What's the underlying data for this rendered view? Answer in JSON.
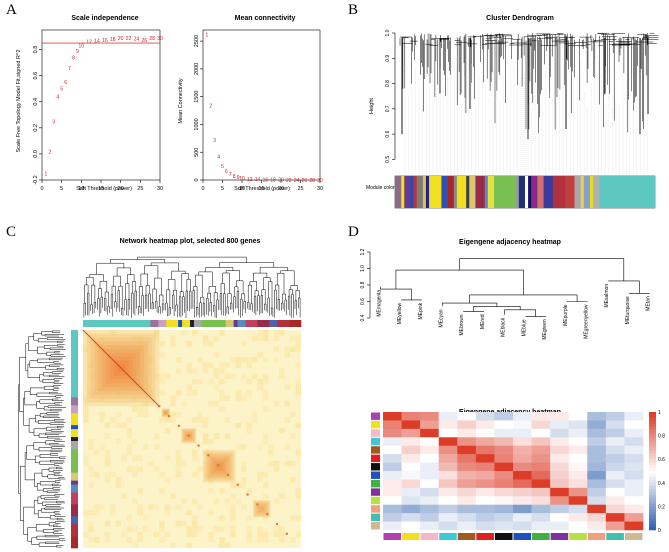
{
  "panels": {
    "a": {
      "letter": "A"
    },
    "b": {
      "letter": "B"
    },
    "c": {
      "letter": "C"
    },
    "d": {
      "letter": "D"
    }
  },
  "chart_data": [
    {
      "id": "scale-independence",
      "type": "scatter",
      "title": "Scale independence",
      "xlabel": "Soft Threshold (power)",
      "ylabel": "Scale Free Topology Model Fit,signed R^2",
      "xlim": [
        0,
        30
      ],
      "ylim": [
        -0.2,
        0.95
      ],
      "xticks": [
        0,
        5,
        10,
        15,
        20,
        25,
        30
      ],
      "yticks": [
        -0.2,
        0.0,
        0.2,
        0.4,
        0.6,
        0.8
      ],
      "hline": 0.85,
      "hline_color": "#e8423a",
      "point_color": "#d0202a",
      "points": [
        {
          "x": 1,
          "y": -0.15,
          "label": "1"
        },
        {
          "x": 2,
          "y": 0.02,
          "label": "2"
        },
        {
          "x": 3,
          "y": 0.25,
          "label": "3"
        },
        {
          "x": 4,
          "y": 0.44,
          "label": "4"
        },
        {
          "x": 5,
          "y": 0.5,
          "label": "5"
        },
        {
          "x": 6,
          "y": 0.55,
          "label": "6"
        },
        {
          "x": 7,
          "y": 0.66,
          "label": "7"
        },
        {
          "x": 8,
          "y": 0.74,
          "label": "8"
        },
        {
          "x": 9,
          "y": 0.79,
          "label": "9"
        },
        {
          "x": 10,
          "y": 0.83,
          "label": "10"
        },
        {
          "x": 12,
          "y": 0.86,
          "label": "12"
        },
        {
          "x": 14,
          "y": 0.87,
          "label": "14"
        },
        {
          "x": 16,
          "y": 0.875,
          "label": "16"
        },
        {
          "x": 18,
          "y": 0.88,
          "label": "18"
        },
        {
          "x": 20,
          "y": 0.89,
          "label": "20"
        },
        {
          "x": 22,
          "y": 0.89,
          "label": "22"
        },
        {
          "x": 24,
          "y": 0.885,
          "label": "24"
        },
        {
          "x": 26,
          "y": 0.875,
          "label": "26"
        },
        {
          "x": 28,
          "y": 0.89,
          "label": "28"
        },
        {
          "x": 30,
          "y": 0.89,
          "label": "30"
        }
      ]
    },
    {
      "id": "mean-connectivity",
      "type": "scatter",
      "title": "Mean connectivity",
      "xlabel": "Soft Threshold (power)",
      "ylabel": "Mean Connectivity",
      "xlim": [
        0,
        30
      ],
      "ylim": [
        0,
        2700
      ],
      "xticks": [
        0,
        5,
        10,
        15,
        20,
        25,
        30
      ],
      "yticks": [
        0,
        500,
        1000,
        1500,
        2000,
        2500
      ],
      "point_color": "#d0202a",
      "points": [
        {
          "x": 1,
          "y": 2620,
          "label": "1"
        },
        {
          "x": 2,
          "y": 1340,
          "label": "2"
        },
        {
          "x": 3,
          "y": 720,
          "label": "3"
        },
        {
          "x": 4,
          "y": 420,
          "label": "4"
        },
        {
          "x": 5,
          "y": 250,
          "label": "5"
        },
        {
          "x": 6,
          "y": 160,
          "label": "6"
        },
        {
          "x": 7,
          "y": 105,
          "label": "7"
        },
        {
          "x": 8,
          "y": 70,
          "label": "8"
        },
        {
          "x": 9,
          "y": 50,
          "label": "9"
        },
        {
          "x": 10,
          "y": 38,
          "label": "10"
        },
        {
          "x": 12,
          "y": 22,
          "label": "12"
        },
        {
          "x": 14,
          "y": 14,
          "label": "14"
        },
        {
          "x": 16,
          "y": 10,
          "label": "16"
        },
        {
          "x": 18,
          "y": 7,
          "label": "18"
        },
        {
          "x": 20,
          "y": 5,
          "label": "20"
        },
        {
          "x": 22,
          "y": 4,
          "label": "22"
        },
        {
          "x": 24,
          "y": 3,
          "label": "24"
        },
        {
          "x": 26,
          "y": 2,
          "label": "26"
        },
        {
          "x": 28,
          "y": 2,
          "label": "28"
        },
        {
          "x": 30,
          "y": 1,
          "label": "30"
        }
      ]
    },
    {
      "id": "cluster-dendrogram",
      "type": "dendrogram",
      "title": "Cluster Dendrogram",
      "ylabel": "Height",
      "ylim": [
        0.45,
        1.0
      ],
      "yticks": [
        0.5,
        0.6,
        0.7,
        0.8,
        0.9,
        1.0
      ],
      "color_bar_label": "Module colors",
      "module_colors": [
        {
          "color": "#8c6a8c",
          "w": 2
        },
        {
          "color": "#f0e020",
          "w": 1
        },
        {
          "color": "#6a3a8a",
          "w": 2
        },
        {
          "color": "#2050c0",
          "w": 1
        },
        {
          "color": "#c03030",
          "w": 1
        },
        {
          "color": "#7a7a7a",
          "w": 2
        },
        {
          "color": "#e0c040",
          "w": 1
        },
        {
          "color": "#202090",
          "w": 1
        },
        {
          "color": "#f0e020",
          "w": 4
        },
        {
          "color": "#3050b8",
          "w": 2
        },
        {
          "color": "#a82828",
          "w": 2
        },
        {
          "color": "#888888",
          "w": 1
        },
        {
          "color": "#f0e020",
          "w": 3
        },
        {
          "color": "#404040",
          "w": 1
        },
        {
          "color": "#d8c870",
          "w": 2
        },
        {
          "color": "#9a2a4a",
          "w": 3
        },
        {
          "color": "#5a8ac0",
          "w": 1
        },
        {
          "color": "#e8e040",
          "w": 2
        },
        {
          "color": "#78c050",
          "w": 7
        },
        {
          "color": "#9a9a9a",
          "w": 1
        },
        {
          "color": "#203080",
          "w": 2
        },
        {
          "color": "#ffffff",
          "w": 1
        },
        {
          "color": "#101060",
          "w": 1
        },
        {
          "color": "#8a2a8a",
          "w": 2
        },
        {
          "color": "#d07070",
          "w": 2
        },
        {
          "color": "#3a3a9a",
          "w": 3
        },
        {
          "color": "#b03040",
          "w": 4
        },
        {
          "color": "#c04040",
          "w": 3
        },
        {
          "color": "#a8a8a8",
          "w": 2
        },
        {
          "color": "#e8d050",
          "w": 1
        },
        {
          "color": "#8aa0c8",
          "w": 2
        },
        {
          "color": "#e0e020",
          "w": 1
        },
        {
          "color": "#b0b0b0",
          "w": 2
        },
        {
          "color": "#5cc8c0",
          "w": 18
        }
      ]
    },
    {
      "id": "network-heatmap",
      "type": "heatmap",
      "title": "Network heatmap plot, selected 800 genes",
      "blocks": [
        {
          "start": 0.0,
          "end": 0.35,
          "intensity": 0.75
        },
        {
          "start": 0.36,
          "end": 0.4,
          "intensity": 0.5
        },
        {
          "start": 0.45,
          "end": 0.52,
          "intensity": 0.45
        },
        {
          "start": 0.55,
          "end": 0.7,
          "intensity": 0.6
        },
        {
          "start": 0.78,
          "end": 0.86,
          "intensity": 0.3
        }
      ],
      "module_colors": [
        {
          "color": "#5cc8c0",
          "w": 17
        },
        {
          "color": "#a070a0",
          "w": 2
        },
        {
          "color": "#c8a0c0",
          "w": 2
        },
        {
          "color": "#f0e020",
          "w": 3
        },
        {
          "color": "#2050c0",
          "w": 1
        },
        {
          "color": "#f0e020",
          "w": 2
        },
        {
          "color": "#202020",
          "w": 1
        },
        {
          "color": "#a8a8a8",
          "w": 2
        },
        {
          "color": "#78c050",
          "w": 6
        },
        {
          "color": "#d8c870",
          "w": 2
        },
        {
          "color": "#6a3a8a",
          "w": 1
        },
        {
          "color": "#5a8ac0",
          "w": 2
        },
        {
          "color": "#c04060",
          "w": 3
        },
        {
          "color": "#9a2a4a",
          "w": 3
        },
        {
          "color": "#5060b0",
          "w": 2
        },
        {
          "color": "#b03040",
          "w": 3
        },
        {
          "color": "#a82828",
          "w": 3
        }
      ]
    },
    {
      "id": "eigengene-dendrogram",
      "type": "dendrogram",
      "title": "Eigengene adjacency heatmap",
      "ylim": [
        0.4,
        1.2
      ],
      "yticks": [
        0.4,
        0.6,
        0.8,
        1.0,
        1.2
      ],
      "leaves": [
        "MEmagenta",
        "MEyellow",
        "MEpink",
        "MEcyan",
        "MEbrown",
        "MEred",
        "MEblack",
        "MEblue",
        "MEgreen",
        "MEpurple",
        "MEgreenyellow",
        "MEsalmon",
        "MEturquoise",
        "MEtan"
      ],
      "leaf_heights": [
        0.78,
        0.62,
        0.62,
        0.54,
        0.48,
        0.48,
        0.44,
        0.42,
        0.42,
        0.6,
        0.6,
        0.85,
        0.7,
        0.7
      ],
      "merges": [
        {
          "a": [
            1,
            2
          ],
          "h": 0.62
        },
        {
          "a": [
            0,
            1.5
          ],
          "h": 0.75
        },
        {
          "a": [
            4,
            5
          ],
          "h": 0.48
        },
        {
          "a": [
            7,
            8
          ],
          "h": 0.42
        },
        {
          "a": [
            6,
            7.5
          ],
          "h": 0.5
        },
        {
          "a": [
            4.5,
            6.75
          ],
          "h": 0.54
        },
        {
          "a": [
            3,
            5.625
          ],
          "h": 0.58
        },
        {
          "a": [
            9,
            10
          ],
          "h": 0.6
        },
        {
          "a": [
            4.3125,
            9.5
          ],
          "h": 0.68
        },
        {
          "a": [
            12,
            13
          ],
          "h": 0.7
        },
        {
          "a": [
            11,
            12.5
          ],
          "h": 0.85
        },
        {
          "a": [
            0.75,
            6.90625
          ],
          "h": 0.98
        },
        {
          "a": [
            3.828125,
            11.75
          ],
          "h": 1.12
        }
      ]
    },
    {
      "id": "eigengene-heatmap",
      "type": "heatmap",
      "title": "Eigengene adjacency heatmap",
      "colorbar_ticks": [
        0,
        0.2,
        0.4,
        0.6,
        0.8,
        1
      ],
      "row_colors": [
        "#b040b0",
        "#f0e020",
        "#f4b8c8",
        "#40c8d8",
        "#a05a20",
        "#e02020",
        "#101010",
        "#2050c0",
        "#40b040",
        "#8030a0",
        "#b8e040",
        "#f0a080",
        "#40c0b0",
        "#d0b890"
      ],
      "matrix": [
        [
          1.0,
          0.82,
          0.8,
          0.45,
          0.5,
          0.4,
          0.35,
          0.45,
          0.55,
          0.55,
          0.5,
          0.3,
          0.35,
          0.45
        ],
        [
          0.82,
          1.0,
          0.75,
          0.55,
          0.62,
          0.55,
          0.5,
          0.48,
          0.6,
          0.45,
          0.42,
          0.25,
          0.4,
          0.5
        ],
        [
          0.8,
          0.75,
          1.0,
          0.5,
          0.55,
          0.5,
          0.45,
          0.45,
          0.5,
          0.4,
          0.45,
          0.3,
          0.35,
          0.45
        ],
        [
          0.45,
          0.55,
          0.5,
          1.0,
          0.78,
          0.72,
          0.68,
          0.58,
          0.65,
          0.55,
          0.5,
          0.35,
          0.45,
          0.4
        ],
        [
          0.5,
          0.62,
          0.55,
          0.78,
          1.0,
          0.85,
          0.8,
          0.7,
          0.75,
          0.6,
          0.55,
          0.3,
          0.4,
          0.45
        ],
        [
          0.4,
          0.55,
          0.5,
          0.72,
          0.85,
          1.0,
          0.82,
          0.72,
          0.78,
          0.55,
          0.5,
          0.3,
          0.35,
          0.4
        ],
        [
          0.35,
          0.5,
          0.45,
          0.68,
          0.8,
          0.82,
          1.0,
          0.8,
          0.82,
          0.6,
          0.52,
          0.28,
          0.38,
          0.42
        ],
        [
          0.45,
          0.48,
          0.45,
          0.58,
          0.7,
          0.72,
          0.8,
          1.0,
          0.88,
          0.62,
          0.55,
          0.2,
          0.45,
          0.4
        ],
        [
          0.55,
          0.6,
          0.5,
          0.65,
          0.75,
          0.78,
          0.82,
          0.88,
          1.0,
          0.65,
          0.58,
          0.3,
          0.4,
          0.45
        ],
        [
          0.55,
          0.45,
          0.4,
          0.55,
          0.6,
          0.55,
          0.6,
          0.62,
          0.65,
          1.0,
          0.78,
          0.35,
          0.5,
          0.45
        ],
        [
          0.5,
          0.42,
          0.45,
          0.5,
          0.55,
          0.5,
          0.52,
          0.55,
          0.58,
          0.78,
          1.0,
          0.4,
          0.55,
          0.5
        ],
        [
          0.3,
          0.25,
          0.3,
          0.35,
          0.3,
          0.3,
          0.28,
          0.2,
          0.3,
          0.35,
          0.4,
          1.0,
          0.6,
          0.55
        ],
        [
          0.35,
          0.4,
          0.35,
          0.45,
          0.4,
          0.35,
          0.38,
          0.45,
          0.4,
          0.5,
          0.55,
          0.6,
          1.0,
          0.75
        ],
        [
          0.45,
          0.5,
          0.45,
          0.4,
          0.45,
          0.4,
          0.42,
          0.4,
          0.45,
          0.45,
          0.5,
          0.55,
          0.75,
          1.0
        ]
      ]
    }
  ]
}
